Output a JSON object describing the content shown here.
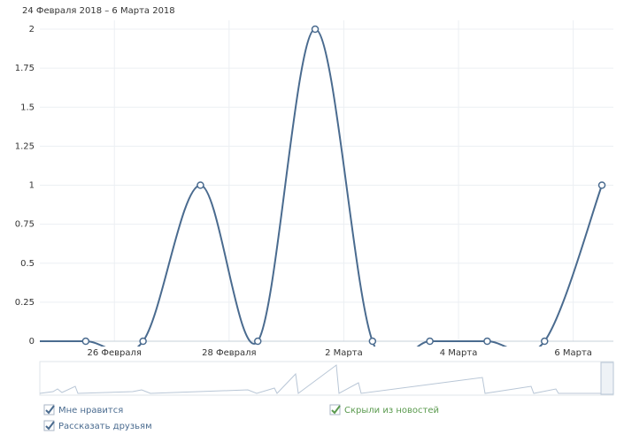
{
  "chart_data": {
    "type": "line",
    "title": "24 Февраля 2018 – 6 Марта 2018",
    "x": [
      0,
      1,
      2,
      3,
      4,
      5,
      6,
      7,
      8,
      9,
      10
    ],
    "series": [
      {
        "name": "Мне нравится",
        "color": "#4a6b8f",
        "values": [
          0,
          0,
          0,
          1,
          0,
          2,
          0,
          0,
          0,
          0,
          1
        ]
      }
    ],
    "xlim": [
      0.2,
      10.2
    ],
    "xticks": [
      {
        "value": 1.5,
        "label": "26 Февраля"
      },
      {
        "value": 3.5,
        "label": "28 Февраля"
      },
      {
        "value": 5.5,
        "label": "2 Марта"
      },
      {
        "value": 7.5,
        "label": "4 Марта"
      },
      {
        "value": 9.5,
        "label": "6 Марта"
      }
    ],
    "ylim": [
      0,
      2
    ],
    "yticks": [
      0,
      0.25,
      0.5,
      0.75,
      1,
      1.25,
      1.5,
      1.75,
      2
    ],
    "grid": true,
    "checkboxes": [
      {
        "label": "Мне нравится",
        "color": "#4a6b8f"
      },
      {
        "label": "Скрыли из новостей",
        "color": "#5a9a4e"
      },
      {
        "label": "Рассказать друзьям",
        "color": "#4a6b8f"
      }
    ]
  }
}
